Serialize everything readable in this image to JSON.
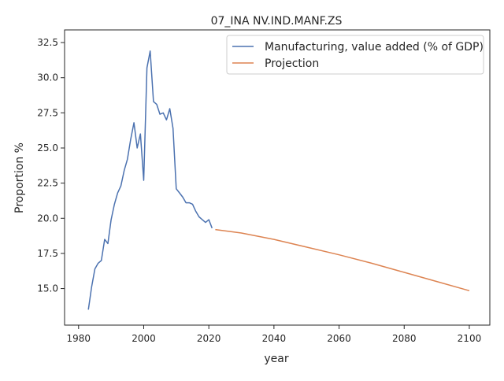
{
  "chart_data": {
    "type": "line",
    "title": "07_INA NV.IND.MANF.ZS",
    "xlabel": "year",
    "ylabel": "Proportion %",
    "xlim": [
      1975.7,
      2106.3
    ],
    "ylim": [
      12.4,
      33.4
    ],
    "x_ticks": [
      1980,
      2000,
      2020,
      2040,
      2060,
      2080,
      2100
    ],
    "y_ticks": [
      15.0,
      17.5,
      20.0,
      22.5,
      25.0,
      27.5,
      30.0,
      32.5
    ],
    "x_tick_labels": [
      "1980",
      "2000",
      "2020",
      "2040",
      "2060",
      "2080",
      "2100"
    ],
    "y_tick_labels": [
      "15.0",
      "17.5",
      "20.0",
      "22.5",
      "25.0",
      "27.5",
      "30.0",
      "32.5"
    ],
    "grid": false,
    "legend_position": "top-right",
    "series": [
      {
        "name": "Manufacturing, value added (% of GDP)",
        "color": "#4c72b0",
        "x": [
          1983,
          1984,
          1985,
          1986,
          1987,
          1988,
          1989,
          1990,
          1991,
          1992,
          1993,
          1994,
          1995,
          1996,
          1997,
          1998,
          1999,
          2000,
          2001,
          2002,
          2003,
          2004,
          2005,
          2006,
          2007,
          2008,
          2009,
          2010,
          2011,
          2012,
          2013,
          2014,
          2015,
          2016,
          2017,
          2018,
          2019,
          2020,
          2021
        ],
        "y": [
          13.5,
          15.1,
          16.4,
          16.8,
          17.0,
          18.5,
          18.2,
          19.9,
          21.0,
          21.8,
          22.3,
          23.4,
          24.2,
          25.6,
          26.8,
          25.0,
          26.0,
          22.7,
          30.7,
          31.9,
          28.3,
          28.1,
          27.4,
          27.5,
          27.0,
          27.8,
          26.4,
          22.1,
          21.8,
          21.5,
          21.1,
          21.1,
          21.0,
          20.5,
          20.1,
          19.9,
          19.7,
          19.9,
          19.3
        ]
      },
      {
        "name": "Projection",
        "color": "#dd8452",
        "x": [
          2022,
          2030,
          2040,
          2050,
          2060,
          2070,
          2080,
          2090,
          2100
        ],
        "y": [
          19.2,
          18.95,
          18.5,
          17.95,
          17.4,
          16.8,
          16.15,
          15.5,
          14.85
        ]
      }
    ]
  }
}
